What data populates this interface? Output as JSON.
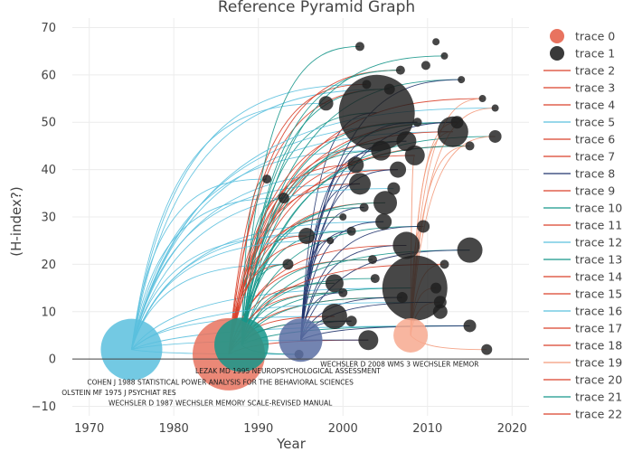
{
  "chart_data": {
    "type": "scatter",
    "title": "Reference Pyramid Graph",
    "xlabel": "Year",
    "ylabel": "(H-index?)",
    "xlim": [
      1968,
      2022
    ],
    "ylim": [
      -12,
      72
    ],
    "x_ticks": [
      1970,
      1980,
      1990,
      2000,
      2010,
      2020
    ],
    "y_ticks": [
      -10,
      0,
      10,
      20,
      30,
      40,
      50,
      60,
      70
    ],
    "grid": true,
    "legend_position": "right",
    "colors": {
      "trace0": "#e8735f",
      "trace1": "#1e1e1e",
      "cyan": "#5bc0de",
      "teal": "#16968a",
      "navy": "#22356e",
      "red": "#d9412b",
      "salmon": "#f39a7b"
    },
    "legend": [
      {
        "name": "trace 0",
        "kind": "marker",
        "color": "#e8735f"
      },
      {
        "name": "trace 1",
        "kind": "marker",
        "color": "#3a3a3a"
      },
      {
        "name": "trace 2",
        "kind": "line",
        "color": "#d9412b"
      },
      {
        "name": "trace 3",
        "kind": "line",
        "color": "#d9412b"
      },
      {
        "name": "trace 4",
        "kind": "line",
        "color": "#d9412b"
      },
      {
        "name": "trace 5",
        "kind": "line",
        "color": "#5bc0de"
      },
      {
        "name": "trace 6",
        "kind": "line",
        "color": "#d9412b"
      },
      {
        "name": "trace 7",
        "kind": "line",
        "color": "#d9412b"
      },
      {
        "name": "trace 8",
        "kind": "line",
        "color": "#22356e"
      },
      {
        "name": "trace 9",
        "kind": "line",
        "color": "#d9412b"
      },
      {
        "name": "trace 10",
        "kind": "line",
        "color": "#16968a"
      },
      {
        "name": "trace 11",
        "kind": "line",
        "color": "#d9412b"
      },
      {
        "name": "trace 12",
        "kind": "line",
        "color": "#5bc0de"
      },
      {
        "name": "trace 13",
        "kind": "line",
        "color": "#16968a"
      },
      {
        "name": "trace 14",
        "kind": "line",
        "color": "#d9412b"
      },
      {
        "name": "trace 15",
        "kind": "line",
        "color": "#d9412b"
      },
      {
        "name": "trace 16",
        "kind": "line",
        "color": "#5bc0de"
      },
      {
        "name": "trace 17",
        "kind": "line",
        "color": "#d9412b"
      },
      {
        "name": "trace 18",
        "kind": "line",
        "color": "#d9412b"
      },
      {
        "name": "trace 19",
        "kind": "line",
        "color": "#f39a7b"
      },
      {
        "name": "trace 20",
        "kind": "line",
        "color": "#d9412b"
      },
      {
        "name": "trace 21",
        "kind": "line",
        "color": "#16968a"
      },
      {
        "name": "trace 22",
        "kind": "line",
        "color": "#d9412b"
      }
    ],
    "references": [
      {
        "x": 1975,
        "y": 2,
        "size": 34,
        "color": "#5bc0de"
      },
      {
        "x": 1986.5,
        "y": 1,
        "size": 40,
        "color": "#e8735f"
      },
      {
        "x": 1988,
        "y": 3,
        "size": 30,
        "color": "#16968a"
      },
      {
        "x": 1995,
        "y": 4,
        "size": 24,
        "color": "#5b6fa3"
      },
      {
        "x": 2008,
        "y": 5,
        "size": 19,
        "color": "#f7a98f"
      }
    ],
    "citers": [
      {
        "x": 2004,
        "y": 52,
        "size": 42
      },
      {
        "x": 2008.5,
        "y": 15,
        "size": 36
      },
      {
        "x": 2013,
        "y": 48,
        "size": 17
      },
      {
        "x": 2007.5,
        "y": 24,
        "size": 15
      },
      {
        "x": 2015,
        "y": 23,
        "size": 14
      },
      {
        "x": 2005,
        "y": 33,
        "size": 13
      },
      {
        "x": 1999,
        "y": 9,
        "size": 14
      },
      {
        "x": 2002,
        "y": 37,
        "size": 12
      },
      {
        "x": 2004.5,
        "y": 44,
        "size": 11
      },
      {
        "x": 2007.5,
        "y": 46,
        "size": 11
      },
      {
        "x": 2008.5,
        "y": 43,
        "size": 11
      },
      {
        "x": 2001.5,
        "y": 41,
        "size": 9
      },
      {
        "x": 2003,
        "y": 4,
        "size": 11
      },
      {
        "x": 1995.7,
        "y": 26,
        "size": 9
      },
      {
        "x": 1999,
        "y": 16,
        "size": 10
      },
      {
        "x": 2004.8,
        "y": 29,
        "size": 9
      },
      {
        "x": 2006.5,
        "y": 40,
        "size": 9
      },
      {
        "x": 1998,
        "y": 54,
        "size": 8
      },
      {
        "x": 2011.5,
        "y": 10,
        "size": 8
      },
      {
        "x": 2013.5,
        "y": 50,
        "size": 7
      },
      {
        "x": 2018,
        "y": 47,
        "size": 7
      },
      {
        "x": 2015,
        "y": 7,
        "size": 7
      },
      {
        "x": 2017,
        "y": 2,
        "size": 6
      },
      {
        "x": 2009.5,
        "y": 28,
        "size": 7
      },
      {
        "x": 2011,
        "y": 15,
        "size": 6
      },
      {
        "x": 2007,
        "y": 13,
        "size": 6
      },
      {
        "x": 2006,
        "y": 36,
        "size": 7
      },
      {
        "x": 1993,
        "y": 34,
        "size": 6
      },
      {
        "x": 1991,
        "y": 38,
        "size": 5
      },
      {
        "x": 1993.5,
        "y": 20,
        "size": 6
      },
      {
        "x": 2000,
        "y": 14,
        "size": 5
      },
      {
        "x": 2001,
        "y": 8,
        "size": 6
      },
      {
        "x": 2003.5,
        "y": 21,
        "size": 5
      },
      {
        "x": 2003.8,
        "y": 17,
        "size": 5
      },
      {
        "x": 2002.5,
        "y": 32,
        "size": 5
      },
      {
        "x": 2001,
        "y": 27,
        "size": 5
      },
      {
        "x": 2005.5,
        "y": 57,
        "size": 6
      },
      {
        "x": 2002.8,
        "y": 58,
        "size": 5
      },
      {
        "x": 2006.8,
        "y": 61,
        "size": 5
      },
      {
        "x": 2009.8,
        "y": 62,
        "size": 5
      },
      {
        "x": 2002,
        "y": 66,
        "size": 5
      },
      {
        "x": 2011,
        "y": 67,
        "size": 4
      },
      {
        "x": 2014,
        "y": 59,
        "size": 4
      },
      {
        "x": 2012,
        "y": 64,
        "size": 4
      },
      {
        "x": 2016.5,
        "y": 55,
        "size": 4
      },
      {
        "x": 2018,
        "y": 53,
        "size": 4
      },
      {
        "x": 2015,
        "y": 45,
        "size": 5
      },
      {
        "x": 2011.5,
        "y": 12,
        "size": 7
      },
      {
        "x": 1994.8,
        "y": 1,
        "size": 5
      },
      {
        "x": 2012,
        "y": 20,
        "size": 5
      },
      {
        "x": 2008.8,
        "y": 50,
        "size": 5
      },
      {
        "x": 2000,
        "y": 30,
        "size": 4
      },
      {
        "x": 1998.5,
        "y": 25,
        "size": 4
      }
    ],
    "annotations": [
      {
        "text": "WECHSLER D 2008 WMS 3 WECHSLER MEMOR",
        "x": 2006.7,
        "y": -1.0
      },
      {
        "text": "LEZAK MD 1995 NEUROPSYCHOLOGICAL ASSESSMENT",
        "x": 1993.5,
        "y": -2.5
      },
      {
        "text": "COHEN J 1988 STATISTICAL POWER ANALYSIS FOR THE BEHAVIORAL SCIENCES",
        "x": 1985.5,
        "y": -4.8
      },
      {
        "text": "OLSTEIN MF 1975 J PSYCHIAT RES",
        "x": 1973.5,
        "y": -7.0
      },
      {
        "text": "WECHSLER D 1987 WECHSLER MEMORY SCALE-REVISED MANUAL",
        "x": 1985.5,
        "y": -9.2
      }
    ]
  }
}
